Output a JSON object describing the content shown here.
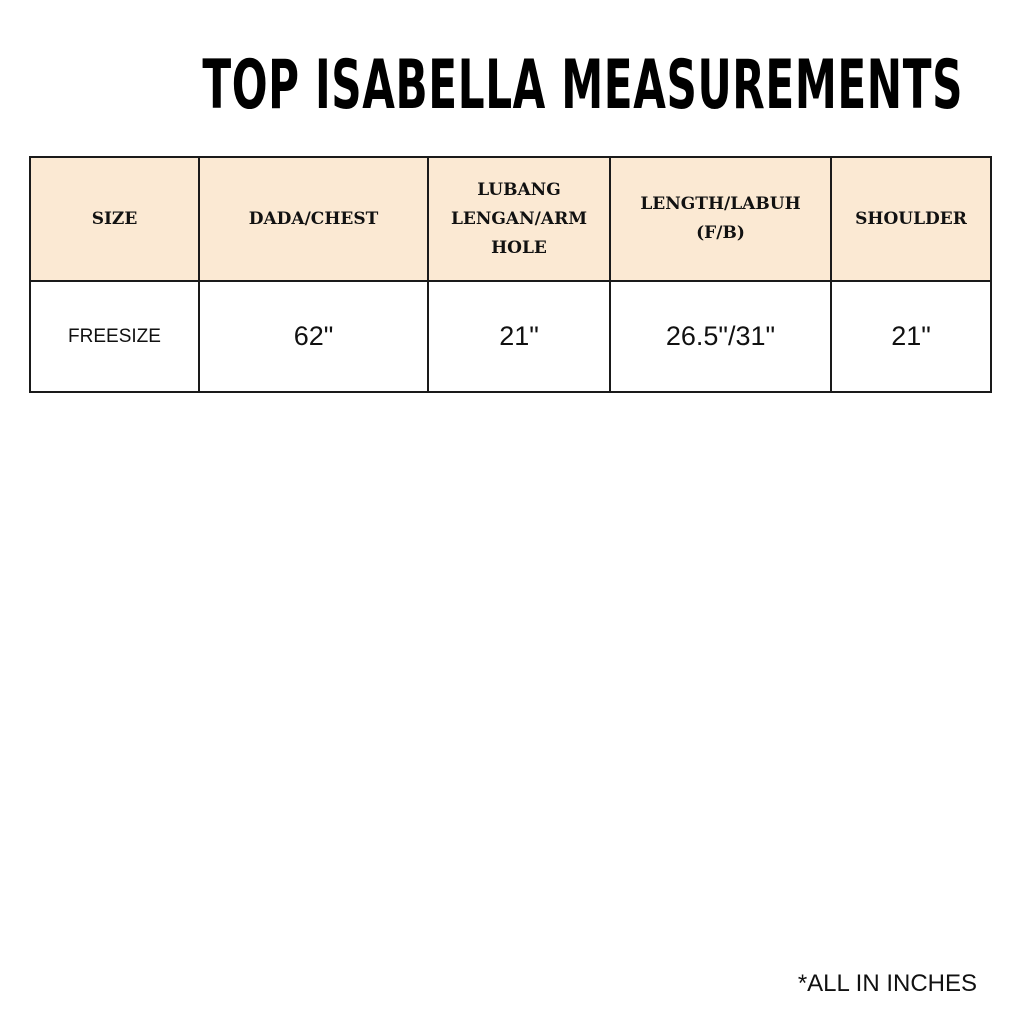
{
  "title": "TOP ISABELLA MEASUREMENTS",
  "table": {
    "headers": [
      "SIZE",
      "DADA/CHEST",
      "LUBANG LENGAN/ARM HOLE",
      "LENGTH/LABUH (F/B)",
      "SHOULDER"
    ],
    "rows": [
      {
        "size": "FREESIZE",
        "chest": "62\"",
        "arm_hole": "21\"",
        "length": "26.5\"/31\"",
        "shoulder": "21\""
      }
    ]
  },
  "footnote": "*ALL IN INCHES",
  "colors": {
    "header_background": "#fbe9d3",
    "border": "#1a1a1a",
    "text": "#111111"
  }
}
